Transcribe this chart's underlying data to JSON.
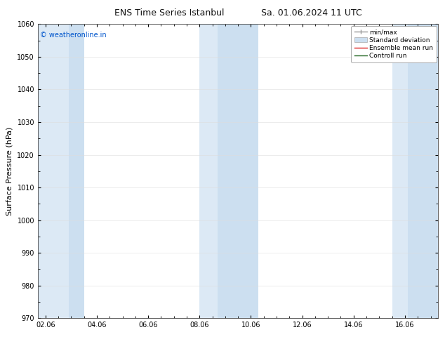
{
  "title_left": "ENS Time Series Istanbul",
  "title_right": "Sa. 01.06.2024 11 UTC",
  "ylabel": "Surface Pressure (hPa)",
  "ylim": [
    970,
    1060
  ],
  "yticks": [
    970,
    980,
    990,
    1000,
    1010,
    1020,
    1030,
    1040,
    1050,
    1060
  ],
  "xtick_labels": [
    "02.06",
    "04.06",
    "06.06",
    "08.06",
    "10.06",
    "12.06",
    "14.06",
    "16.06"
  ],
  "xtick_positions": [
    0,
    2,
    4,
    6,
    8,
    10,
    12,
    14
  ],
  "xlim": [
    -0.3,
    15.3
  ],
  "blue_bands": [
    {
      "start": -0.3,
      "end": 0.9
    },
    {
      "start": 0.9,
      "end": 1.5
    },
    {
      "start": 6.0,
      "end": 6.7
    },
    {
      "start": 6.7,
      "end": 8.3
    },
    {
      "start": 13.5,
      "end": 14.1
    },
    {
      "start": 14.1,
      "end": 15.3
    }
  ],
  "band_colors": [
    "#dce9f5",
    "#ccdff0",
    "#dce9f5",
    "#ccdff0",
    "#dce9f5",
    "#ccdff0"
  ],
  "watermark": "© weatheronline.in",
  "watermark_color": "#0055cc",
  "legend_labels": [
    "min/max",
    "Standard deviation",
    "Ensemble mean run",
    "Controll run"
  ],
  "bg_color": "#ffffff",
  "title_fontsize": 9,
  "ylabel_fontsize": 8,
  "tick_fontsize": 7,
  "legend_fontsize": 6.5,
  "watermark_fontsize": 7
}
